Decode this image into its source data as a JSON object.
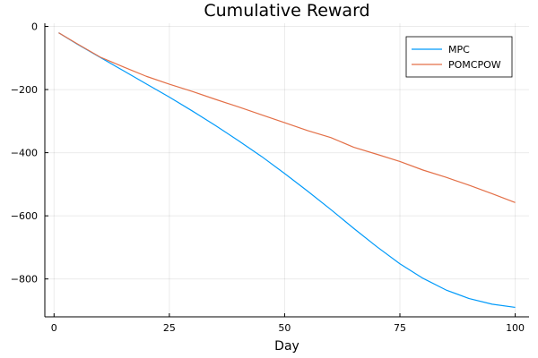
{
  "chart_data": {
    "type": "line",
    "title": "Cumulative Reward",
    "xlabel": "Day",
    "ylabel": "",
    "xlim": [
      -2,
      103
    ],
    "ylim": [
      -920,
      10
    ],
    "x_ticks": [
      0,
      25,
      50,
      75,
      100
    ],
    "x_tick_labels": [
      "0",
      "25",
      "50",
      "75",
      "100"
    ],
    "y_ticks": [
      0,
      -200,
      -400,
      -600,
      -800
    ],
    "y_tick_labels": [
      "0",
      "−200",
      "−400",
      "−600",
      "−800"
    ],
    "grid": true,
    "legend_position": "top-right",
    "series": [
      {
        "name": "MPC",
        "color": "#009AFA",
        "points": [
          [
            1,
            -20
          ],
          [
            5,
            -56
          ],
          [
            10,
            -98
          ],
          [
            15,
            -140
          ],
          [
            20,
            -182
          ],
          [
            25,
            -224
          ],
          [
            30,
            -268
          ],
          [
            35,
            -314
          ],
          [
            40,
            -362
          ],
          [
            45,
            -412
          ],
          [
            50,
            -466
          ],
          [
            55,
            -522
          ],
          [
            60,
            -580
          ],
          [
            65,
            -640
          ],
          [
            70,
            -698
          ],
          [
            75,
            -752
          ],
          [
            80,
            -798
          ],
          [
            85,
            -835
          ],
          [
            90,
            -862
          ],
          [
            95,
            -880
          ],
          [
            100,
            -890
          ]
        ]
      },
      {
        "name": "POMCPOW",
        "color": "#E36F47",
        "points": [
          [
            1,
            -20
          ],
          [
            5,
            -55
          ],
          [
            10,
            -97
          ],
          [
            15,
            -128
          ],
          [
            20,
            -158
          ],
          [
            25,
            -183
          ],
          [
            30,
            -206
          ],
          [
            35,
            -231
          ],
          [
            40,
            -255
          ],
          [
            45,
            -280
          ],
          [
            50,
            -305
          ],
          [
            55,
            -330
          ],
          [
            60,
            -352
          ],
          [
            65,
            -383
          ],
          [
            70,
            -405
          ],
          [
            75,
            -428
          ],
          [
            80,
            -455
          ],
          [
            85,
            -478
          ],
          [
            90,
            -503
          ],
          [
            95,
            -530
          ],
          [
            100,
            -558
          ]
        ]
      }
    ]
  }
}
